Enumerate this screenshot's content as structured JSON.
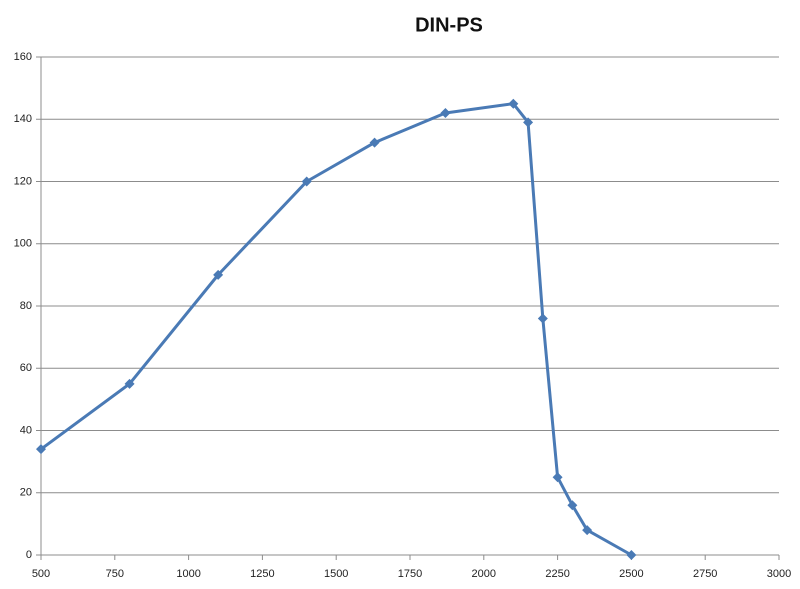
{
  "chart_data": {
    "type": "line",
    "title": "DIN-PS",
    "x": [
      500,
      800,
      1100,
      1400,
      1630,
      1870,
      2100,
      2150,
      2200,
      2250,
      2300,
      2350,
      2500
    ],
    "series": [
      {
        "color": "#4a7ab5",
        "values": [
          34,
          55,
          90,
          120,
          132.5,
          142,
          145,
          139,
          76,
          25,
          16,
          8,
          0
        ]
      }
    ],
    "xlim": [
      500,
      3000
    ],
    "xticks": [
      500,
      750,
      1000,
      1250,
      1500,
      1750,
      2000,
      2250,
      2500,
      2750,
      3000
    ],
    "ylim": [
      0,
      160
    ],
    "yticks": [
      0,
      20,
      40,
      60,
      80,
      100,
      120,
      140,
      160
    ],
    "grid": true
  }
}
